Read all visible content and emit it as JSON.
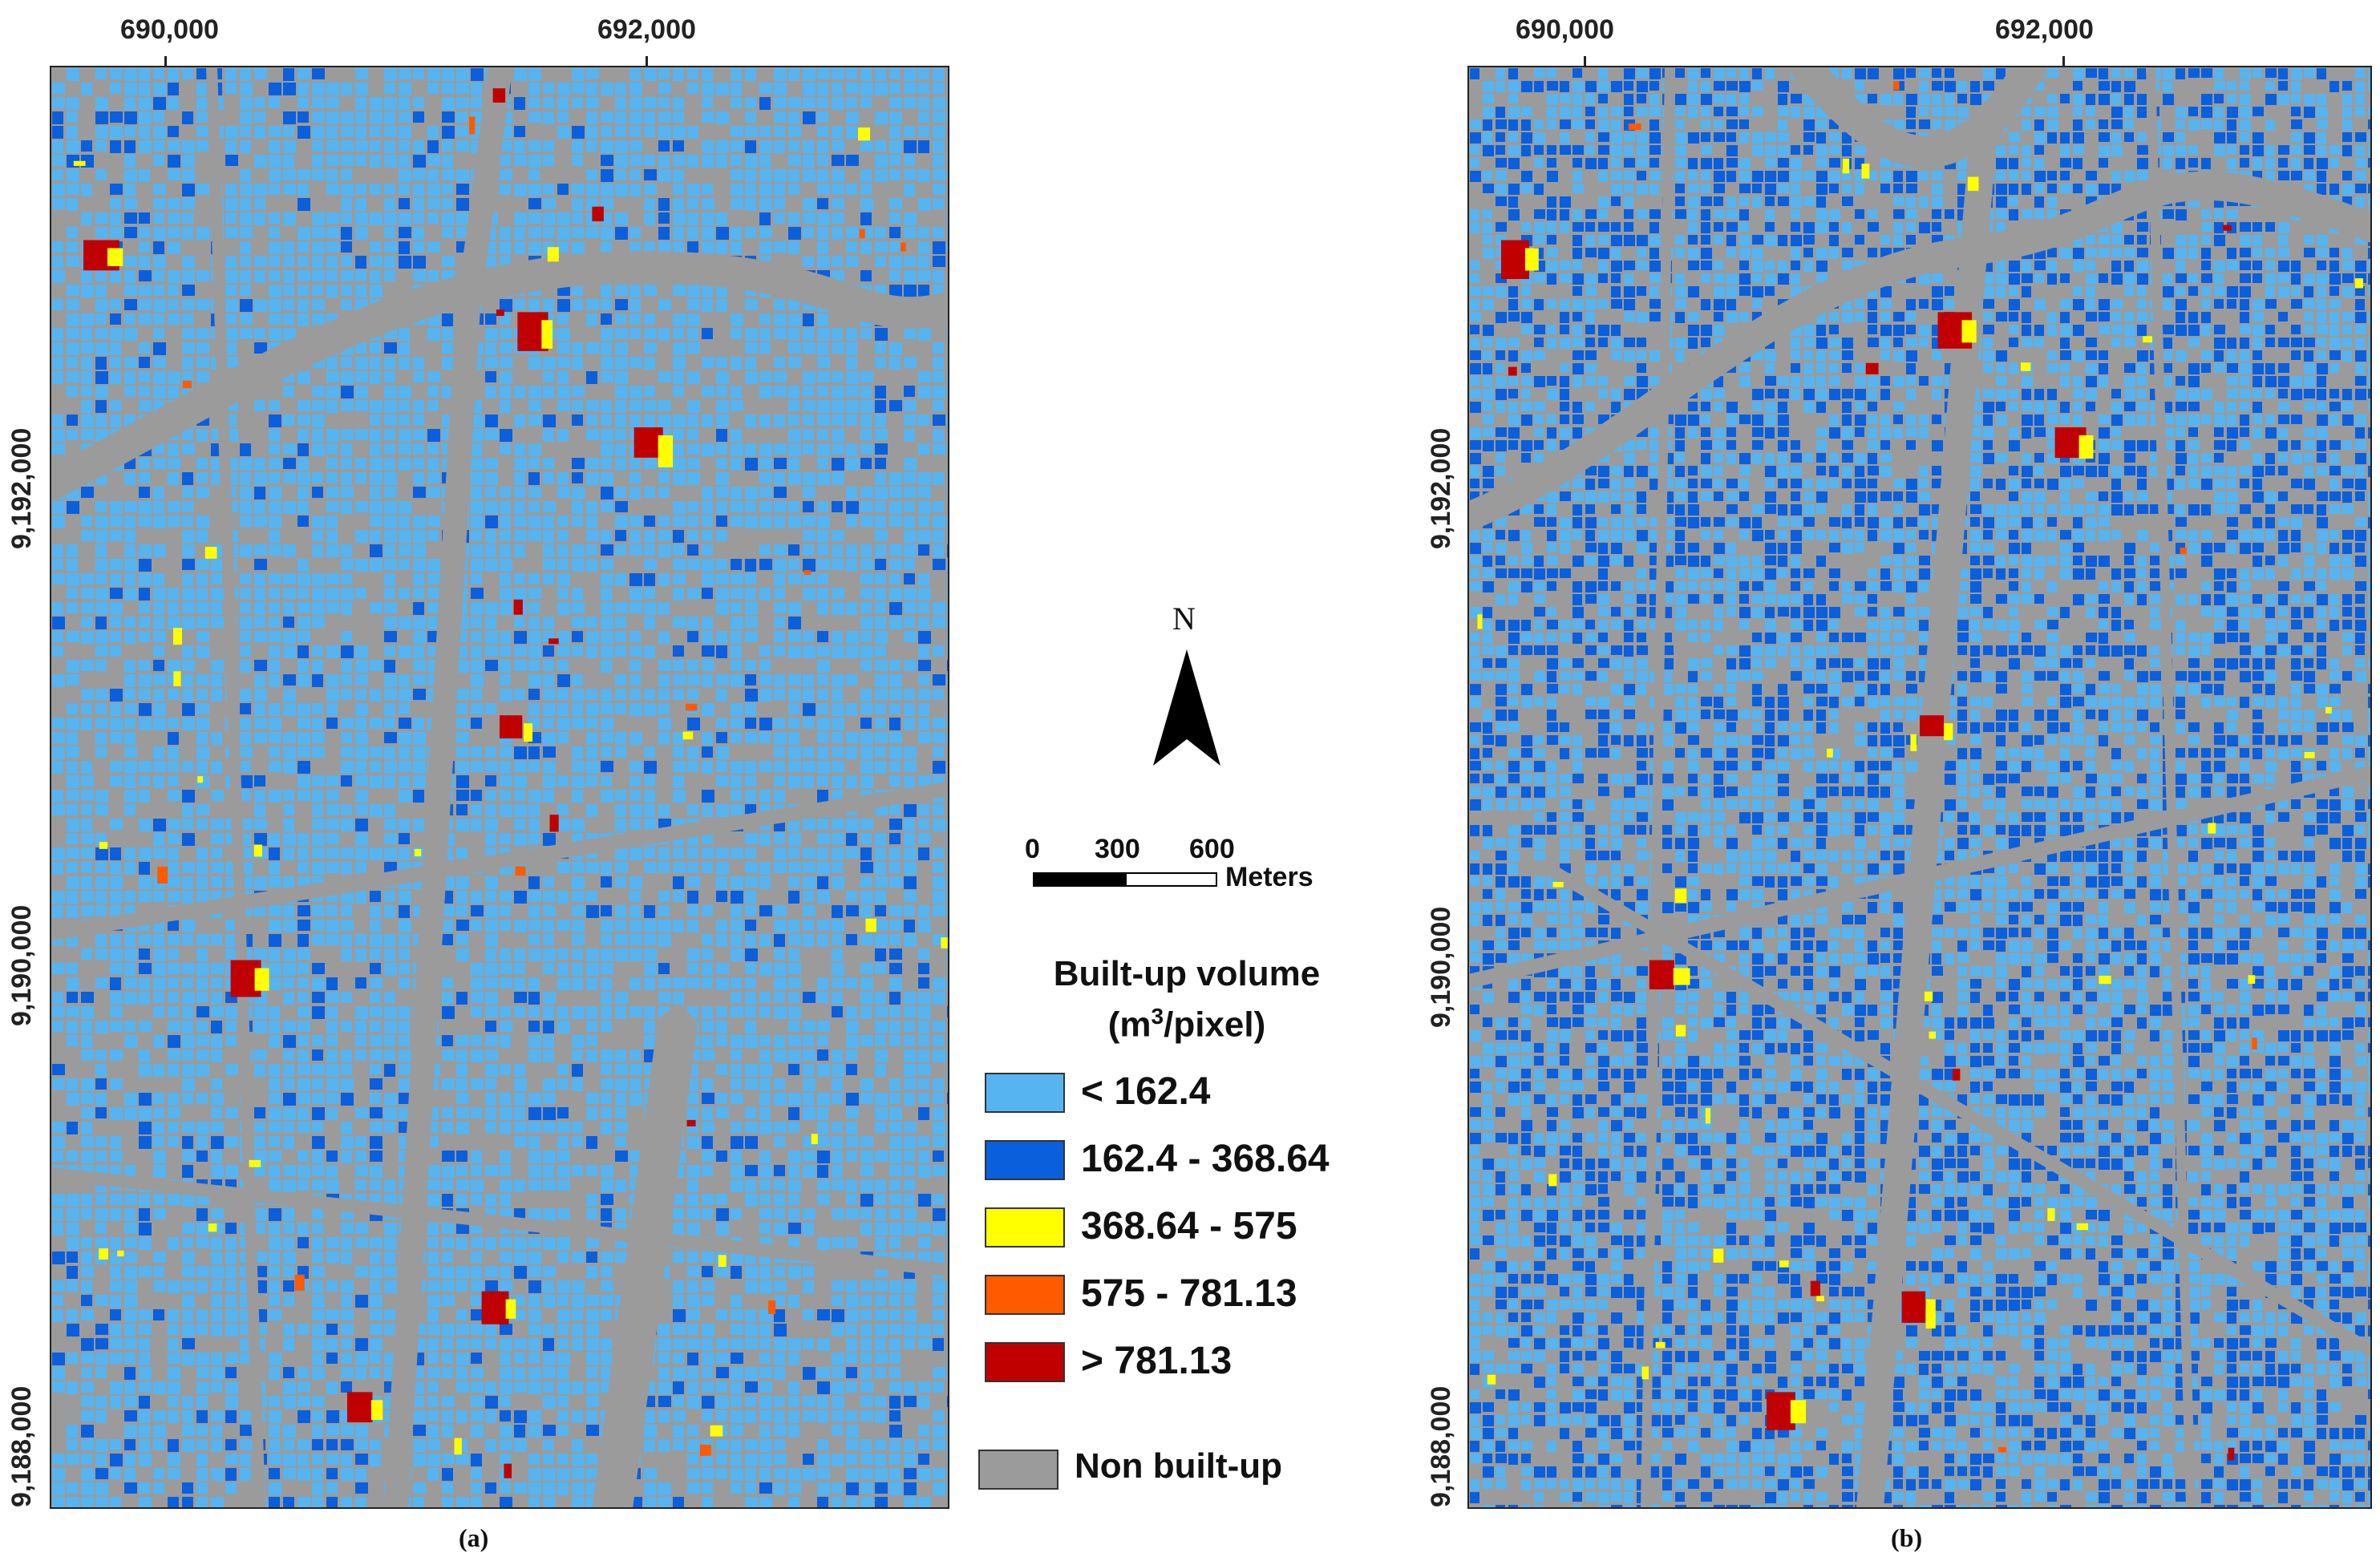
{
  "panel_a": {
    "label": "(a)",
    "x_ticks": [
      "690,000",
      "692,000"
    ],
    "y_ticks": [
      "9,192,000",
      "9,190,000",
      "9,188,000"
    ]
  },
  "panel_b": {
    "label": "(b)",
    "x_ticks": [
      "690,000",
      "692,000"
    ],
    "y_ticks": [
      "9,192,000",
      "9,190,000",
      "9,188,000"
    ]
  },
  "north_arrow": {
    "label": "N",
    "icon": "north-arrow-icon"
  },
  "scale_bar": {
    "ticks": [
      "0",
      "300",
      "600"
    ],
    "unit": "Meters"
  },
  "legend": {
    "title_line1": "Built-up volume",
    "title_line2_prefix": "(m",
    "title_line2_sup": "3",
    "title_line2_suffix": "/pixel)",
    "classes": [
      {
        "label": "< 162.4",
        "color": "#56b4f0"
      },
      {
        "label": "162.4 - 368.64",
        "color": "#0a5fdc"
      },
      {
        "label": "368.64 - 575",
        "color": "#ffff00"
      },
      {
        "label": "575 - 781.13",
        "color": "#ff5a00"
      },
      {
        "label": "> 781.13",
        "color": "#c00000"
      }
    ],
    "non_built": {
      "label": "Non built-up",
      "color": "#9b9b9b"
    }
  }
}
